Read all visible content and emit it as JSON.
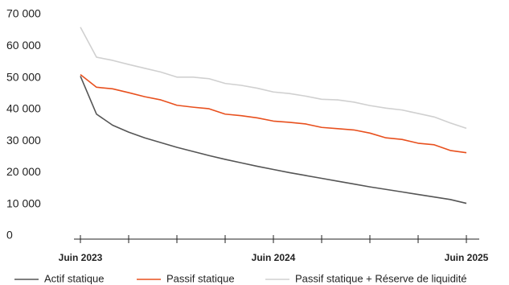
{
  "chart_data": {
    "type": "line",
    "categories": [
      "Juin 2023",
      null,
      null,
      null,
      null,
      null,
      null,
      null,
      null,
      null,
      null,
      null,
      "Juin 2024",
      null,
      null,
      null,
      null,
      null,
      null,
      null,
      null,
      null,
      null,
      null,
      "Juin 2025"
    ],
    "series": [
      {
        "name": "Actif statique",
        "color": "#555555",
        "values": [
          50500,
          38500,
          35000,
          32800,
          31000,
          29500,
          28000,
          26700,
          25400,
          24200,
          23100,
          22000,
          21000,
          20000,
          19100,
          18200,
          17300,
          16400,
          15500,
          14700,
          13900,
          13100,
          12300,
          11500,
          10300
        ]
      },
      {
        "name": "Passif statique",
        "color": "#e8501e",
        "values": [
          51000,
          47000,
          46500,
          45300,
          44000,
          43000,
          41300,
          40700,
          40200,
          38500,
          38000,
          37300,
          36300,
          35900,
          35400,
          34300,
          33900,
          33500,
          32500,
          31000,
          30500,
          29300,
          28800,
          27000,
          26300
        ]
      },
      {
        "name": "Passif statique + Réserve de liquidité",
        "color": "#d0d0d0",
        "values": [
          66000,
          56500,
          55500,
          54200,
          53000,
          51800,
          50200,
          50200,
          49700,
          48200,
          47600,
          46700,
          45500,
          45000,
          44200,
          43200,
          43000,
          42300,
          41200,
          40400,
          39800,
          38700,
          37600,
          35700,
          34000
        ]
      }
    ],
    "ylim": [
      0,
      70000
    ],
    "yticks": [
      0,
      {
        "value": 10000,
        "label": "10 000"
      },
      {
        "value": 20000,
        "label": "20 000"
      },
      {
        "value": 30000,
        "label": "30 000"
      },
      {
        "value": 40000,
        "label": "40 000"
      },
      {
        "value": 50000,
        "label": "50 000"
      },
      {
        "value": 60000,
        "label": "60 000"
      },
      {
        "value": 70000,
        "label": "70 000"
      }
    ],
    "legend": "bottom",
    "grid": false
  }
}
